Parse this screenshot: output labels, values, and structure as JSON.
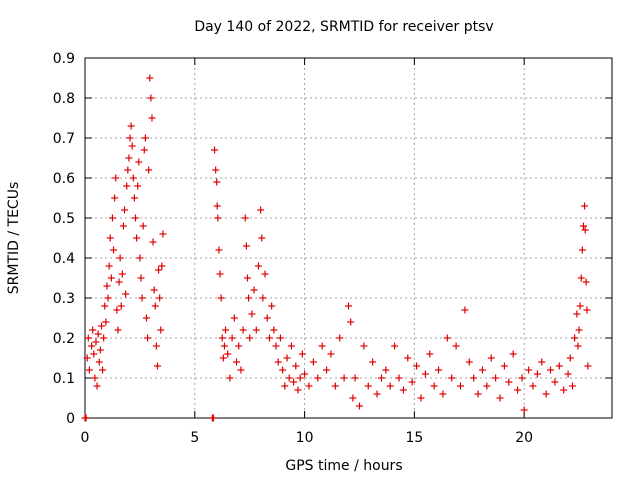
{
  "chart_data": {
    "type": "scatter",
    "title": "Day 140 of 2022, SRMTID for receiver ptsv",
    "xlabel": "GPS time / hours",
    "ylabel": "SRMTID / TECUs",
    "xlim": [
      0,
      24
    ],
    "ylim": [
      0,
      0.9
    ],
    "x_ticks": [
      0,
      5,
      10,
      15,
      20
    ],
    "y_ticks": [
      0,
      0.1,
      0.2,
      0.3,
      0.4,
      0.5,
      0.6,
      0.7,
      0.8,
      0.9
    ],
    "x_tick_labels": [
      "0",
      "5",
      "10",
      "15",
      "20"
    ],
    "y_tick_labels": [
      "0",
      "0.1",
      "0.2",
      "0.3",
      "0.4",
      "0.5",
      "0.6",
      "0.7",
      "0.8",
      "0.9"
    ],
    "grid": true,
    "marker": "+",
    "marker_color": "#e00000",
    "series": [
      {
        "name": "SRMTID",
        "points": [
          [
            0.0,
            0.0
          ],
          [
            0.05,
            0.0
          ],
          [
            5.8,
            0.0
          ],
          [
            5.85,
            0.0
          ],
          [
            0.1,
            0.15
          ],
          [
            0.15,
            0.2
          ],
          [
            0.2,
            0.12
          ],
          [
            0.3,
            0.18
          ],
          [
            0.35,
            0.22
          ],
          [
            0.4,
            0.16
          ],
          [
            0.45,
            0.1
          ],
          [
            0.5,
            0.19
          ],
          [
            0.55,
            0.08
          ],
          [
            0.6,
            0.21
          ],
          [
            0.65,
            0.14
          ],
          [
            0.7,
            0.17
          ],
          [
            0.75,
            0.23
          ],
          [
            0.8,
            0.12
          ],
          [
            0.85,
            0.2
          ],
          [
            0.9,
            0.28
          ],
          [
            0.95,
            0.24
          ],
          [
            1.0,
            0.33
          ],
          [
            1.05,
            0.3
          ],
          [
            1.1,
            0.38
          ],
          [
            1.15,
            0.45
          ],
          [
            1.2,
            0.35
          ],
          [
            1.25,
            0.5
          ],
          [
            1.3,
            0.42
          ],
          [
            1.35,
            0.55
          ],
          [
            1.4,
            0.6
          ],
          [
            1.45,
            0.27
          ],
          [
            1.5,
            0.22
          ],
          [
            1.55,
            0.34
          ],
          [
            1.6,
            0.4
          ],
          [
            1.65,
            0.28
          ],
          [
            1.7,
            0.36
          ],
          [
            1.75,
            0.48
          ],
          [
            1.8,
            0.52
          ],
          [
            1.85,
            0.31
          ],
          [
            1.9,
            0.58
          ],
          [
            1.95,
            0.62
          ],
          [
            2.0,
            0.65
          ],
          [
            2.05,
            0.7
          ],
          [
            2.1,
            0.73
          ],
          [
            2.15,
            0.68
          ],
          [
            2.2,
            0.6
          ],
          [
            2.25,
            0.55
          ],
          [
            2.3,
            0.5
          ],
          [
            2.35,
            0.45
          ],
          [
            2.4,
            0.58
          ],
          [
            2.45,
            0.64
          ],
          [
            2.5,
            0.4
          ],
          [
            2.55,
            0.35
          ],
          [
            2.6,
            0.3
          ],
          [
            2.65,
            0.48
          ],
          [
            2.7,
            0.67
          ],
          [
            2.75,
            0.7
          ],
          [
            2.8,
            0.25
          ],
          [
            2.85,
            0.2
          ],
          [
            2.9,
            0.62
          ],
          [
            2.95,
            0.85
          ],
          [
            3.0,
            0.8
          ],
          [
            3.05,
            0.75
          ],
          [
            3.1,
            0.44
          ],
          [
            3.15,
            0.32
          ],
          [
            3.2,
            0.28
          ],
          [
            3.25,
            0.18
          ],
          [
            3.3,
            0.13
          ],
          [
            3.35,
            0.37
          ],
          [
            3.4,
            0.3
          ],
          [
            3.45,
            0.22
          ],
          [
            3.5,
            0.38
          ],
          [
            3.55,
            0.46
          ],
          [
            5.9,
            0.67
          ],
          [
            5.95,
            0.62
          ],
          [
            6.0,
            0.59
          ],
          [
            6.02,
            0.53
          ],
          [
            6.05,
            0.5
          ],
          [
            6.1,
            0.42
          ],
          [
            6.15,
            0.36
          ],
          [
            6.2,
            0.3
          ],
          [
            6.25,
            0.2
          ],
          [
            6.3,
            0.15
          ],
          [
            6.35,
            0.18
          ],
          [
            6.4,
            0.22
          ],
          [
            6.5,
            0.16
          ],
          [
            6.6,
            0.1
          ],
          [
            6.7,
            0.2
          ],
          [
            6.8,
            0.25
          ],
          [
            6.9,
            0.14
          ],
          [
            7.0,
            0.18
          ],
          [
            7.1,
            0.12
          ],
          [
            7.2,
            0.22
          ],
          [
            7.3,
            0.5
          ],
          [
            7.35,
            0.43
          ],
          [
            7.4,
            0.35
          ],
          [
            7.45,
            0.3
          ],
          [
            7.5,
            0.2
          ],
          [
            7.6,
            0.26
          ],
          [
            7.7,
            0.32
          ],
          [
            7.8,
            0.22
          ],
          [
            7.9,
            0.38
          ],
          [
            8.0,
            0.52
          ],
          [
            8.05,
            0.45
          ],
          [
            8.1,
            0.3
          ],
          [
            8.2,
            0.36
          ],
          [
            8.3,
            0.25
          ],
          [
            8.4,
            0.2
          ],
          [
            8.5,
            0.28
          ],
          [
            8.6,
            0.22
          ],
          [
            8.7,
            0.18
          ],
          [
            8.8,
            0.14
          ],
          [
            8.9,
            0.2
          ],
          [
            9.0,
            0.12
          ],
          [
            9.1,
            0.08
          ],
          [
            9.2,
            0.15
          ],
          [
            9.3,
            0.1
          ],
          [
            9.4,
            0.18
          ],
          [
            9.5,
            0.09
          ],
          [
            9.6,
            0.13
          ],
          [
            9.7,
            0.07
          ],
          [
            9.8,
            0.1
          ],
          [
            9.9,
            0.16
          ],
          [
            10.0,
            0.11
          ],
          [
            10.2,
            0.08
          ],
          [
            10.4,
            0.14
          ],
          [
            10.6,
            0.1
          ],
          [
            10.8,
            0.18
          ],
          [
            11.0,
            0.12
          ],
          [
            11.2,
            0.16
          ],
          [
            11.4,
            0.08
          ],
          [
            11.6,
            0.2
          ],
          [
            11.8,
            0.1
          ],
          [
            12.0,
            0.28
          ],
          [
            12.1,
            0.24
          ],
          [
            12.2,
            0.05
          ],
          [
            12.3,
            0.1
          ],
          [
            12.5,
            0.03
          ],
          [
            12.7,
            0.18
          ],
          [
            12.9,
            0.08
          ],
          [
            13.1,
            0.14
          ],
          [
            13.3,
            0.06
          ],
          [
            13.5,
            0.1
          ],
          [
            13.7,
            0.12
          ],
          [
            13.9,
            0.08
          ],
          [
            14.1,
            0.18
          ],
          [
            14.3,
            0.1
          ],
          [
            14.5,
            0.07
          ],
          [
            14.7,
            0.15
          ],
          [
            14.9,
            0.09
          ],
          [
            15.1,
            0.13
          ],
          [
            15.3,
            0.05
          ],
          [
            15.5,
            0.11
          ],
          [
            15.7,
            0.16
          ],
          [
            15.9,
            0.08
          ],
          [
            16.1,
            0.12
          ],
          [
            16.3,
            0.06
          ],
          [
            16.5,
            0.2
          ],
          [
            16.7,
            0.1
          ],
          [
            16.9,
            0.18
          ],
          [
            17.1,
            0.08
          ],
          [
            17.3,
            0.27
          ],
          [
            17.5,
            0.14
          ],
          [
            17.7,
            0.1
          ],
          [
            17.9,
            0.06
          ],
          [
            18.1,
            0.12
          ],
          [
            18.3,
            0.08
          ],
          [
            18.5,
            0.15
          ],
          [
            18.7,
            0.1
          ],
          [
            18.9,
            0.05
          ],
          [
            19.1,
            0.13
          ],
          [
            19.3,
            0.09
          ],
          [
            19.5,
            0.16
          ],
          [
            19.7,
            0.07
          ],
          [
            19.9,
            0.1
          ],
          [
            20.0,
            0.02
          ],
          [
            20.2,
            0.12
          ],
          [
            20.4,
            0.08
          ],
          [
            20.6,
            0.11
          ],
          [
            20.8,
            0.14
          ],
          [
            21.0,
            0.06
          ],
          [
            21.2,
            0.12
          ],
          [
            21.4,
            0.09
          ],
          [
            21.6,
            0.13
          ],
          [
            21.8,
            0.07
          ],
          [
            22.0,
            0.11
          ],
          [
            22.1,
            0.15
          ],
          [
            22.2,
            0.08
          ],
          [
            22.3,
            0.2
          ],
          [
            22.4,
            0.26
          ],
          [
            22.45,
            0.18
          ],
          [
            22.5,
            0.22
          ],
          [
            22.55,
            0.28
          ],
          [
            22.6,
            0.35
          ],
          [
            22.65,
            0.42
          ],
          [
            22.7,
            0.48
          ],
          [
            22.75,
            0.53
          ],
          [
            22.78,
            0.47
          ],
          [
            22.82,
            0.34
          ],
          [
            22.86,
            0.27
          ],
          [
            22.9,
            0.13
          ]
        ]
      }
    ]
  }
}
